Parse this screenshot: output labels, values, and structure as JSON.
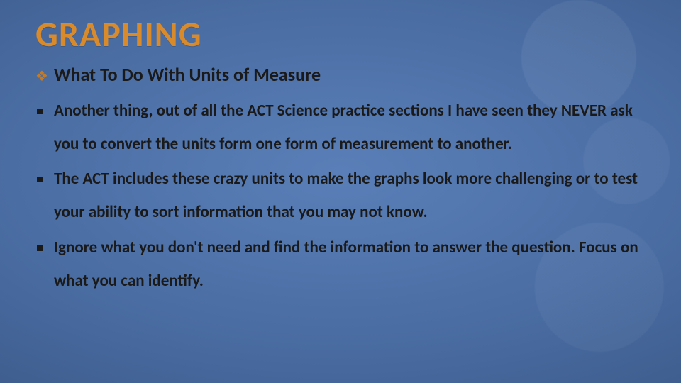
{
  "slide": {
    "title": "GRAPHING",
    "subtitle_bullet": "❖",
    "subtitle": "What To Do With Units of Measure",
    "bullets": [
      "Another thing, out of all the ACT Science practice sections I have seen they NEVER ask you to convert the units form one form of measurement to another.",
      "The ACT includes these crazy units to make the graphs look more challenging or to test your ability to sort information that you may not know.",
      "Ignore what you don't need and find the information to answer the question. Focus on what you can identify."
    ],
    "colors": {
      "title": "#d98a2b",
      "subtitle_bullet": "#c97a1f",
      "text": "#1a1a1a",
      "bg_inner": "#5a7fb8",
      "bg_outer": "#2f4a75"
    },
    "typography": {
      "title_fontsize": 50,
      "subtitle_fontsize": 26,
      "body_fontsize": 23,
      "weight": 700,
      "family": "Calibri"
    }
  }
}
